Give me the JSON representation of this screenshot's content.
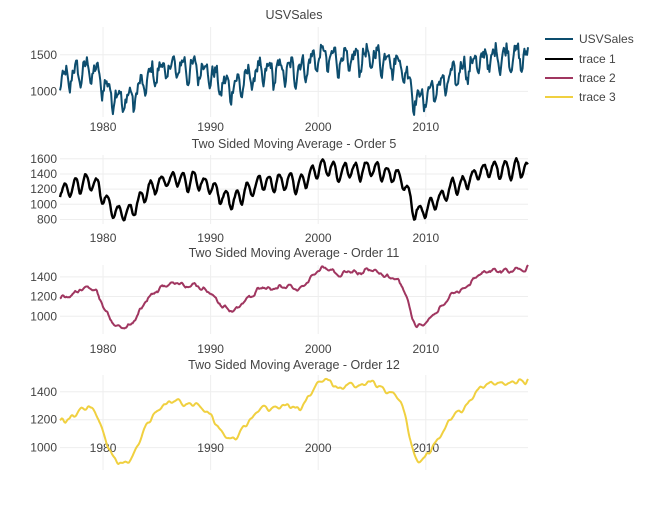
{
  "chart_data": [
    {
      "type": "line",
      "title": "USVSales",
      "series": [
        {
          "name": "USVSales",
          "color": "#0d4d6e"
        }
      ],
      "xlim": [
        1976,
        2019.5
      ],
      "ylim": [
        650,
        1880
      ],
      "xticks": [
        1980,
        1990,
        2000,
        2010
      ],
      "yticks": [
        1000,
        1500
      ],
      "grid": true
    },
    {
      "type": "line",
      "title": "Two Sided Moving Average - Order 5",
      "series": [
        {
          "name": "trace 1",
          "color": "#000000"
        }
      ],
      "xlim": [
        1976,
        2019.5
      ],
      "ylim": [
        740,
        1650
      ],
      "xticks": [
        1980,
        1990,
        2000,
        2010
      ],
      "yticks": [
        800,
        1000,
        1200,
        1400,
        1600
      ],
      "grid": true
    },
    {
      "type": "line",
      "title": "Two Sided Moving Average - Order 11",
      "series": [
        {
          "name": "trace 2",
          "color": "#a03660"
        }
      ],
      "xlim": [
        1976,
        2019.5
      ],
      "ylim": [
        820,
        1520
      ],
      "xticks": [
        1980,
        1990,
        2000,
        2010
      ],
      "yticks": [
        1000,
        1200,
        1400
      ],
      "grid": true
    },
    {
      "type": "line",
      "title": "Two Sided Moving Average - Order 12",
      "series": [
        {
          "name": "trace 3",
          "color": "#f0d040"
        }
      ],
      "xlim": [
        1976,
        2019.5
      ],
      "ylim": [
        840,
        1520
      ],
      "xticks": [
        1980,
        1990,
        2000,
        2010
      ],
      "yticks": [
        1000,
        1200,
        1400
      ],
      "grid": true
    }
  ],
  "trend_knots": {
    "x": [
      1976,
      1977,
      1978,
      1978.8,
      1979.5,
      1980.5,
      1981.5,
      1982.2,
      1983,
      1984,
      1985,
      1986,
      1987,
      1988,
      1989,
      1990,
      1990.7,
      1991.5,
      1992.5,
      1993.5,
      1994.5,
      1995.5,
      1996.5,
      1997.5,
      1998.5,
      1999.5,
      2000.2,
      2001,
      2002,
      2003,
      2004,
      2005,
      2006,
      2006.8,
      2007.5,
      2008.2,
      2008.7,
      2009.2,
      2010,
      2011,
      2012,
      2013,
      2014,
      2015,
      2016,
      2017,
      2018,
      2019.5
    ],
    "y": [
      1110,
      1210,
      1270,
      1310,
      1220,
      1000,
      900,
      870,
      960,
      1150,
      1270,
      1310,
      1340,
      1300,
      1320,
      1250,
      1130,
      1060,
      1080,
      1180,
      1270,
      1260,
      1290,
      1290,
      1300,
      1410,
      1490,
      1460,
      1430,
      1420,
      1450,
      1470,
      1440,
      1420,
      1370,
      1250,
      1000,
      870,
      940,
      1040,
      1150,
      1260,
      1330,
      1420,
      1460,
      1480,
      1480,
      1460
    ]
  },
  "legend": {
    "items": [
      {
        "label": "USVSales",
        "color": "#0d4d6e"
      },
      {
        "label": "trace 1",
        "color": "#000000"
      },
      {
        "label": "trace 2",
        "color": "#a03660"
      },
      {
        "label": "trace 3",
        "color": "#f0d040"
      }
    ]
  }
}
